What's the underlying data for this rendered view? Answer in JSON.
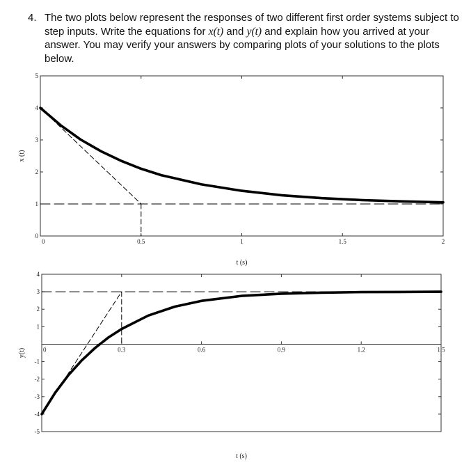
{
  "question": {
    "number": "4.",
    "text_1": "The two plots below represent the responses of two different first order systems subject to step inputs. Write the equations for ",
    "x_symbol": "x(t)",
    "text_2": " and ",
    "y_symbol": "y(t)",
    "text_3": " and explain how you arrived at your answer. You may verify your answers by comparing plots of your solutions to the plots below."
  },
  "chart_data": [
    {
      "type": "line",
      "xlabel": "t (s)",
      "ylabel": "x (t)",
      "xlim": [
        0,
        2
      ],
      "ylim": [
        0,
        5
      ],
      "xticks": [
        "0",
        "0.5",
        "1",
        "1.5",
        "2"
      ],
      "yticks": [
        "0",
        "1",
        "2",
        "3",
        "4",
        "5"
      ],
      "x_tick_values": [
        0,
        0.5,
        1,
        1.5,
        2
      ],
      "y_tick_values": [
        0,
        1,
        2,
        3,
        4,
        5
      ],
      "grid": false,
      "series": [
        {
          "style": "solid-thick",
          "x": [
            0,
            0.1,
            0.2,
            0.3,
            0.4,
            0.5,
            0.6,
            0.8,
            1.0,
            1.2,
            1.4,
            1.6,
            1.8,
            2.0
          ],
          "y": [
            4.0,
            3.46,
            3.01,
            2.65,
            2.35,
            2.1,
            1.9,
            1.61,
            1.41,
            1.27,
            1.18,
            1.12,
            1.08,
            1.05
          ]
        },
        {
          "style": "dashed",
          "x": [
            0,
            0.5
          ],
          "y": [
            4.0,
            1.0
          ]
        },
        {
          "style": "dashed",
          "x": [
            0,
            2
          ],
          "y": [
            1.0,
            1.0
          ]
        },
        {
          "style": "dashed",
          "x": [
            0.5,
            0.5
          ],
          "y": [
            1.0,
            0
          ]
        }
      ]
    },
    {
      "type": "line",
      "xlabel": "t (s)",
      "ylabel": "y(t)",
      "xlim": [
        0,
        1.5
      ],
      "ylim": [
        -5,
        4
      ],
      "xticks": [
        "0",
        "0.3",
        "0.6",
        "0.9",
        "1.2",
        "1.5"
      ],
      "yticks": [
        "-5",
        "-4",
        "-3",
        "-2",
        "-1",
        "1",
        "2",
        "3",
        "4"
      ],
      "x_tick_values": [
        0,
        0.3,
        0.6,
        0.9,
        1.2,
        1.5
      ],
      "y_tick_values": [
        -5,
        -4,
        -3,
        -2,
        -1,
        1,
        2,
        3,
        4
      ],
      "grid": false,
      "series": [
        {
          "style": "solid-thick",
          "x": [
            0,
            0.05,
            0.1,
            0.15,
            0.2,
            0.25,
            0.3,
            0.4,
            0.5,
            0.6,
            0.75,
            0.9,
            1.05,
            1.2,
            1.35,
            1.5
          ],
          "y": [
            -4.0,
            -2.79,
            -1.77,
            -0.93,
            -0.22,
            0.38,
            0.87,
            1.64,
            2.15,
            2.48,
            2.76,
            2.89,
            2.95,
            2.98,
            2.99,
            3.0
          ]
        },
        {
          "style": "dashed",
          "x": [
            0,
            0.3
          ],
          "y": [
            -4.0,
            3.0
          ]
        },
        {
          "style": "dashed",
          "x": [
            0,
            1.5
          ],
          "y": [
            3.0,
            3.0
          ]
        },
        {
          "style": "dashed",
          "x": [
            0.3,
            0.3
          ],
          "y": [
            3.0,
            0
          ]
        }
      ]
    }
  ]
}
